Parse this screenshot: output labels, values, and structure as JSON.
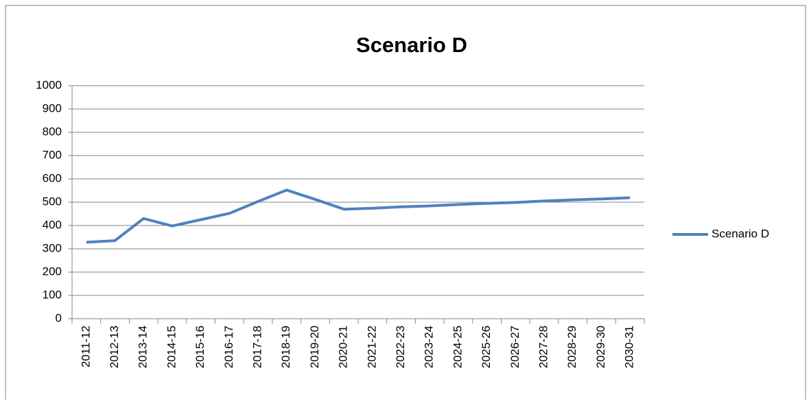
{
  "chart_data": {
    "type": "line",
    "title": "Scenario D",
    "categories": [
      "2011-12",
      "2012-13",
      "2013-14",
      "2014-15",
      "2015-16",
      "2016-17",
      "2017-18",
      "2018-19",
      "2019-20",
      "2020-21",
      "2021-22",
      "2022-23",
      "2023-24",
      "2024-25",
      "2025-26",
      "2026-27",
      "2027-28",
      "2028-29",
      "2029-30",
      "2030-31"
    ],
    "series": [
      {
        "name": "Scenario D",
        "color": "#4f81bd",
        "values": [
          328,
          335,
          430,
          398,
          425,
          452,
          503,
          552,
          512,
          470,
          474,
          480,
          484,
          490,
          495,
          499,
          505,
          510,
          514,
          519
        ]
      }
    ],
    "ylim": [
      0,
      1000
    ],
    "yticks": [
      0,
      100,
      200,
      300,
      400,
      500,
      600,
      700,
      800,
      900,
      1000
    ],
    "grid": true,
    "legend": "right"
  }
}
